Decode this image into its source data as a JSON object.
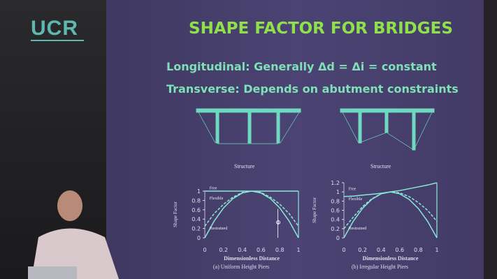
{
  "logo": "UCR",
  "slide": {
    "title": "SHAPE FACTOR FOR BRIDGES",
    "line1": "Longitudinal:  Generally Δd = Δi = constant",
    "line2": "Transverse:  Depends on abutment constraints",
    "structure_label_left": "Structure",
    "structure_label_right": "Structure",
    "colors": {
      "title": "#8fe04a",
      "text": "#7fe0b8",
      "background": "#463e6c"
    }
  },
  "chart_data": [
    {
      "type": "line",
      "title": "(a) Uniform Height Piers",
      "xlabel": "Dimensionless Distance",
      "ylabel": "Shape Factor",
      "xlim": [
        0,
        1
      ],
      "ylim": [
        0,
        1
      ],
      "xticks": [
        "0",
        "0.2",
        "0.4",
        "0.6",
        "0.8",
        "1"
      ],
      "yticks": [
        "0",
        "0.2",
        "0.4",
        "0.6",
        "0.8",
        "1"
      ],
      "x": [
        0,
        0.1,
        0.2,
        0.3,
        0.4,
        0.5,
        0.6,
        0.7,
        0.8,
        0.9,
        1
      ],
      "series": [
        {
          "name": "Free",
          "values": [
            1,
            1,
            1,
            1,
            1,
            1,
            1,
            1,
            1,
            1,
            1
          ]
        },
        {
          "name": "Flexible",
          "values": [
            0.25,
            0.52,
            0.72,
            0.87,
            0.97,
            1,
            0.97,
            0.87,
            0.72,
            0.52,
            0.25
          ],
          "style": "dashed"
        },
        {
          "name": "Restrained",
          "values": [
            0,
            0.36,
            0.64,
            0.84,
            0.96,
            1,
            0.96,
            0.84,
            0.64,
            0.36,
            0
          ]
        }
      ],
      "annotation": "Φ"
    },
    {
      "type": "line",
      "title": "(b) Irregular Height Piers",
      "xlabel": "Dimensionless Distance",
      "ylabel": "Shape Factor",
      "xlim": [
        0,
        1
      ],
      "ylim": [
        0,
        1.2
      ],
      "xticks": [
        "0",
        "0.2",
        "0.4",
        "0.6",
        "0.8",
        "1"
      ],
      "yticks": [
        "0",
        "0.2",
        "0.4",
        "0.6",
        "0.8",
        "1",
        "1.2"
      ],
      "x": [
        0,
        0.1,
        0.2,
        0.3,
        0.4,
        0.5,
        0.6,
        0.7,
        0.8,
        0.9,
        1
      ],
      "series": [
        {
          "name": "Free",
          "values": [
            0.9,
            0.91,
            0.93,
            0.95,
            0.97,
            1,
            1.03,
            1.07,
            1.11,
            1.15,
            1.2
          ]
        },
        {
          "name": "Flexible",
          "values": [
            0.2,
            0.45,
            0.68,
            0.85,
            0.96,
            1,
            0.98,
            0.9,
            0.77,
            0.6,
            0.36
          ],
          "style": "dashed"
        },
        {
          "name": "Restrained",
          "values": [
            0,
            0.36,
            0.64,
            0.84,
            0.96,
            1,
            0.96,
            0.84,
            0.64,
            0.36,
            0
          ]
        }
      ]
    }
  ]
}
